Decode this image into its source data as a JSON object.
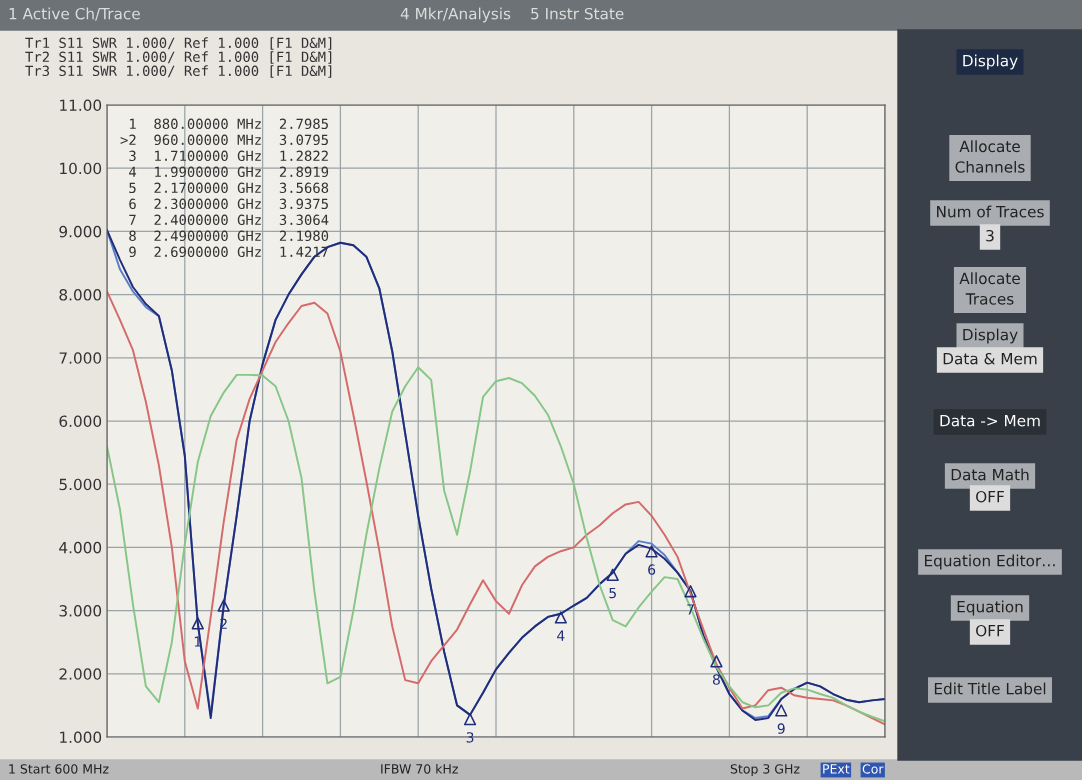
{
  "chart_data": {
    "type": "line",
    "categories": [
      null,
      null,
      null,
      null,
      null,
      null,
      null,
      null,
      null,
      null,
      null,
      null,
      null,
      null,
      null,
      null,
      null,
      null,
      null,
      null,
      null,
      null,
      null,
      null,
      null,
      null,
      null,
      null,
      null,
      null,
      null,
      null,
      null,
      null,
      null,
      null,
      null,
      null,
      null,
      null,
      null,
      null,
      null,
      null,
      null,
      null,
      null,
      null,
      null,
      null,
      null,
      null,
      null,
      null,
      null,
      null,
      null,
      null,
      null,
      null,
      null
    ],
    "series": [
      {
        "color": "#5a7fc8",
        "values": [
          9.02,
          8.4,
          8.05,
          7.8,
          7.66,
          6.8,
          5.45,
          2.8,
          1.35,
          3.08,
          4.5,
          6.0,
          6.9,
          7.6,
          8.0,
          8.32,
          8.6,
          8.75,
          8.82,
          8.78,
          8.6,
          8.1,
          7.1,
          5.8,
          4.5,
          3.35,
          2.35,
          1.5,
          1.35,
          1.7,
          2.07,
          2.33,
          2.57,
          2.75,
          2.9,
          2.95,
          3.08,
          3.2,
          3.42,
          3.6,
          3.9,
          4.1,
          4.06,
          3.88,
          3.6,
          3.31,
          2.6,
          2.1,
          1.68,
          1.42,
          1.3,
          1.33,
          1.6,
          1.76,
          1.86,
          1.8,
          1.68,
          1.59,
          1.55,
          1.58,
          1.6
        ]
      },
      {
        "color": "#1f2d7a",
        "values": [
          9.02,
          8.55,
          8.12,
          7.85,
          7.66,
          6.8,
          5.45,
          2.8,
          1.3,
          3.08,
          4.5,
          6.0,
          6.9,
          7.6,
          8.0,
          8.32,
          8.6,
          8.75,
          8.82,
          8.78,
          8.6,
          8.1,
          7.1,
          5.8,
          4.5,
          3.35,
          2.35,
          1.5,
          1.35,
          1.7,
          2.07,
          2.33,
          2.57,
          2.75,
          2.9,
          2.95,
          3.08,
          3.2,
          3.42,
          3.6,
          3.9,
          4.04,
          3.98,
          3.82,
          3.6,
          3.31,
          2.6,
          2.1,
          1.68,
          1.42,
          1.27,
          1.3,
          1.6,
          1.76,
          1.86,
          1.8,
          1.68,
          1.59,
          1.55,
          1.58,
          1.6
        ]
      },
      {
        "color": "#d46a6a",
        "values": [
          8.05,
          7.6,
          7.12,
          6.3,
          5.3,
          4.0,
          2.2,
          1.45,
          2.9,
          4.4,
          5.7,
          6.35,
          6.8,
          7.25,
          7.55,
          7.82,
          7.87,
          7.7,
          7.1,
          6.1,
          5.05,
          3.95,
          2.75,
          1.9,
          1.85,
          2.2,
          2.45,
          2.7,
          3.1,
          3.48,
          3.15,
          2.95,
          3.4,
          3.7,
          3.85,
          3.94,
          4.0,
          4.2,
          4.35,
          4.54,
          4.68,
          4.72,
          4.5,
          4.2,
          3.85,
          3.27,
          2.7,
          2.15,
          1.78,
          1.45,
          1.5,
          1.74,
          1.78,
          1.66,
          1.62,
          1.6,
          1.58,
          1.5,
          1.4,
          1.3,
          1.2
        ]
      },
      {
        "color": "#86c686",
        "values": [
          5.6,
          4.6,
          3.1,
          1.8,
          1.55,
          2.5,
          4.05,
          5.35,
          6.08,
          6.45,
          6.73,
          6.73,
          6.72,
          6.55,
          6.0,
          5.1,
          3.3,
          1.85,
          1.95,
          3.0,
          4.2,
          5.25,
          6.15,
          6.55,
          6.85,
          6.65,
          4.9,
          4.2,
          5.2,
          6.38,
          6.63,
          6.68,
          6.6,
          6.4,
          6.1,
          5.6,
          5.0,
          4.15,
          3.4,
          2.85,
          2.75,
          3.05,
          3.3,
          3.53,
          3.5,
          3.05,
          2.55,
          2.1,
          1.8,
          1.55,
          1.47,
          1.5,
          1.7,
          1.77,
          1.75,
          1.68,
          1.62,
          1.5,
          1.4,
          1.32,
          1.25
        ]
      },
      {
        "type": "scatter",
        "color": "#1f2d7a",
        "values": [
          null,
          null,
          null,
          null,
          null,
          null,
          null,
          2.7985,
          null,
          3.0795,
          null,
          null,
          null,
          null,
          null,
          null,
          null,
          null,
          null,
          null,
          null,
          null,
          null,
          null,
          null,
          null,
          null,
          null,
          1.2822,
          null,
          null,
          null,
          null,
          null,
          null,
          2.8919,
          null,
          null,
          null,
          3.5668,
          null,
          null,
          3.9375,
          null,
          null,
          3.3064,
          null,
          2.198,
          null,
          null,
          null,
          null,
          1.4217,
          null,
          null,
          null,
          null,
          null,
          null,
          null,
          null
        ],
        "marker": "triangle"
      }
    ],
    "ylim": [
      1,
      11
    ],
    "yticks": [
      {
        "value": 1,
        "label": "1.000"
      },
      {
        "value": 2,
        "label": "2.000"
      },
      {
        "value": 3,
        "label": "3.000"
      },
      {
        "value": 4,
        "label": "4.000"
      },
      {
        "value": 5,
        "label": "5.000"
      },
      {
        "value": 6,
        "label": "6.000"
      },
      {
        "value": 7,
        "label": "7.000"
      },
      {
        "value": 8,
        "label": "8.000"
      },
      {
        "value": 9,
        "label": "9.000"
      },
      {
        "value": 10,
        "label": "10.00"
      },
      {
        "value": 11,
        "label": "11.00"
      }
    ],
    "grid": true,
    "line_style": "solid",
    "annotations": [
      {
        "text": "1",
        "y": 2.7985
      },
      {
        "text": "2",
        "y": 3.0795
      },
      {
        "text": "3",
        "y": 1.2822
      },
      {
        "text": "4",
        "y": 2.8919
      },
      {
        "text": "5",
        "y": 3.5668
      },
      {
        "text": "6",
        "y": 3.9375
      },
      {
        "text": "7",
        "y": 3.3064
      },
      {
        "text": "8",
        "y": 2.198
      },
      {
        "text": "9",
        "y": 1.4217
      },
      "1 Active Ch/Trace",
      "4 Mkr/Analysis",
      "5 Instr State",
      "Tr1 S11 SWR 1.000/ Ref 1.000 [F1 D&M]",
      "Tr2 S11 SWR 1.000/ Ref 1.000 [F1 D&M]",
      "Tr3 S11 SWR 1.000/ Ref 1.000 [F1 D&M]",
      " 1  880.00000 MHz  2.7985",
      ">2  960.00000 MHz  3.0795",
      " 3  1.7100000 GHz  1.2822",
      " 4  1.9900000 GHz  2.8919",
      " 5  2.1700000 GHz  3.5668",
      " 6  2.3000000 GHz  3.9375",
      " 7  2.4000000 GHz  3.3064",
      " 8  2.4900000 GHz  2.1980",
      " 9  2.6900000 GHz  1.4217",
      "1 Start 600 MHz",
      "IFBW 70 kHz",
      "Stop 3 GHz",
      "PExt",
      "Cor",
      "Display",
      "Allocate\nChannels",
      "Num of Traces",
      "3",
      "Allocate\nTraces",
      "Display",
      "Data & Mem",
      "Data -> Mem",
      "Data Math",
      "OFF",
      "Equation Editor…",
      "Equation",
      "OFF",
      "Edit Title Label"
    ]
  }
}
